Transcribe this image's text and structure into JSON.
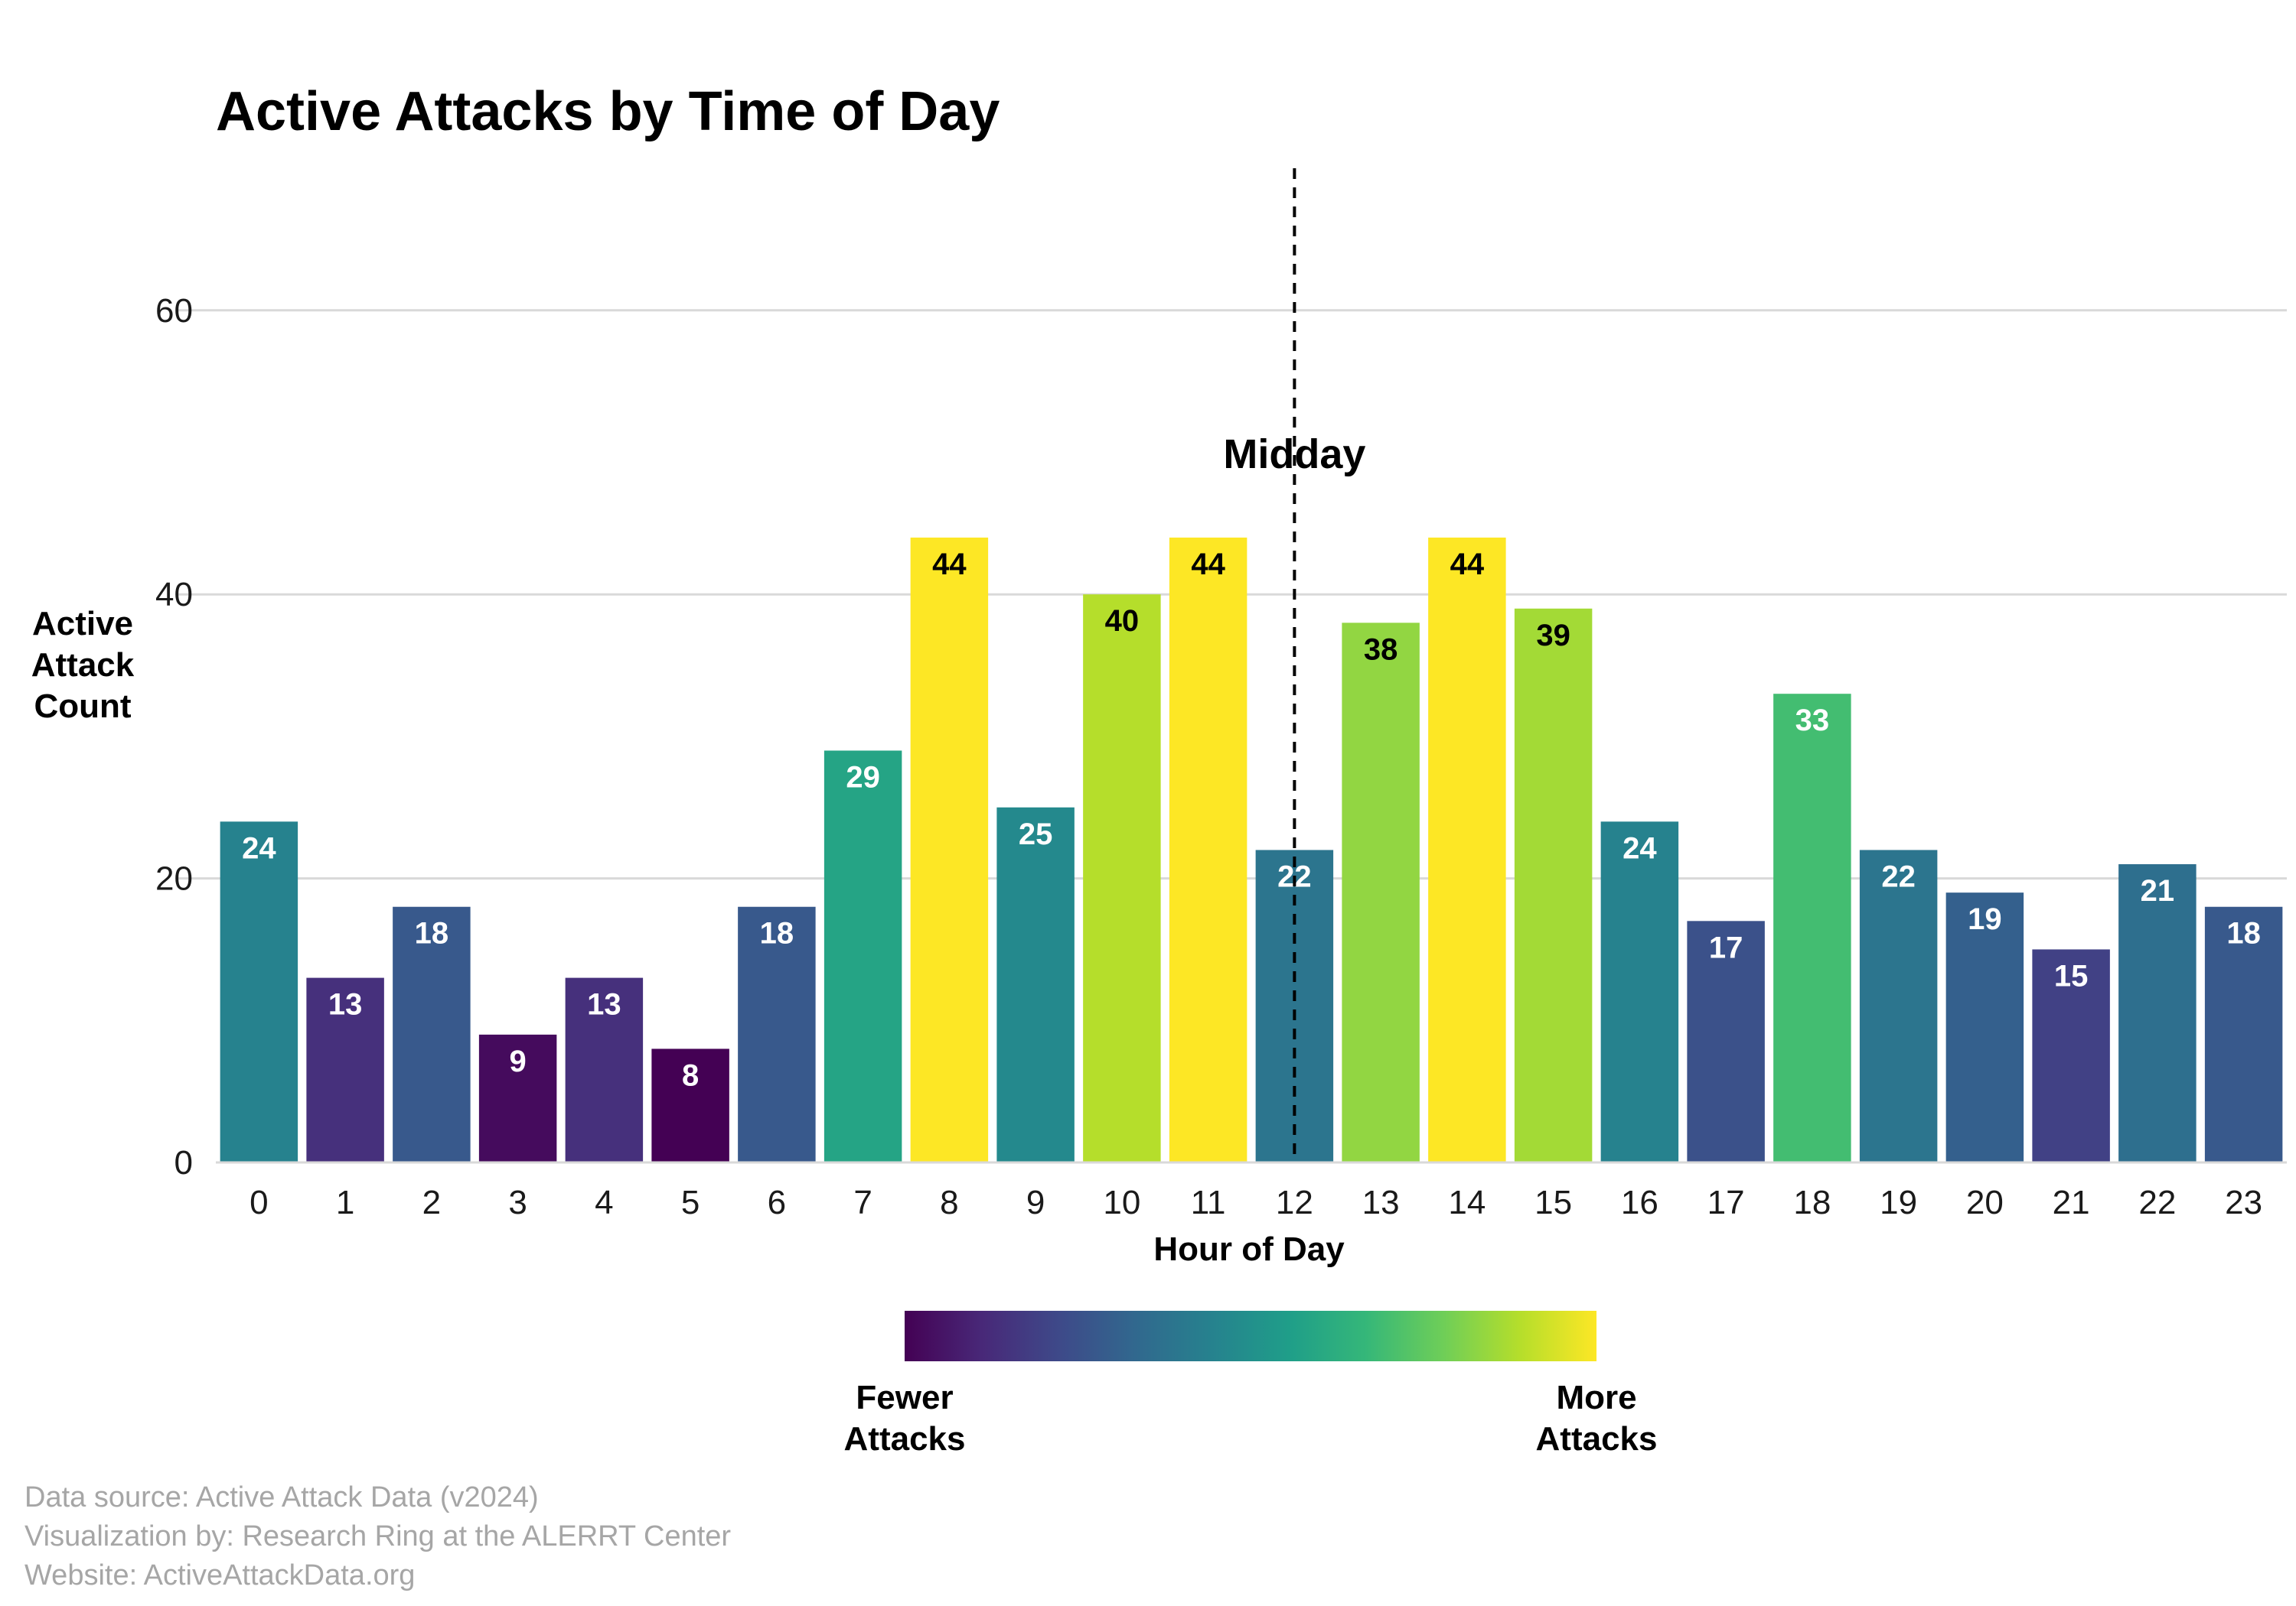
{
  "chart_data": {
    "type": "bar",
    "title": "Active Attacks by Time of Day",
    "xlabel": "Hour of Day",
    "ylabel_lines": [
      "Active",
      "Attack",
      "Count"
    ],
    "categories": [
      "0",
      "1",
      "2",
      "3",
      "4",
      "5",
      "6",
      "7",
      "8",
      "9",
      "10",
      "11",
      "12",
      "13",
      "14",
      "15",
      "16",
      "17",
      "18",
      "19",
      "20",
      "21",
      "22",
      "23"
    ],
    "values": [
      24,
      13,
      18,
      9,
      13,
      8,
      18,
      29,
      44,
      25,
      40,
      44,
      22,
      38,
      44,
      39,
      24,
      17,
      33,
      22,
      19,
      15,
      21,
      18
    ],
    "ylim": [
      0,
      70
    ],
    "yticks": [
      0,
      20,
      40,
      60
    ],
    "grid": "horizontal",
    "colorscale": "viridis",
    "colorscale_stops": [
      "#440154",
      "#482878",
      "#3e4989",
      "#31688e",
      "#26828e",
      "#1f9e89",
      "#35b779",
      "#6ece58",
      "#b5de2b",
      "#fde725"
    ],
    "annotation": {
      "label": "Midday",
      "x": "12",
      "style": "dashed vertical line"
    },
    "legend": {
      "type": "colorbar",
      "placement": "bottom-center",
      "low_label_lines": [
        "Fewer",
        "Attacks"
      ],
      "high_label_lines": [
        "More",
        "Attacks"
      ]
    }
  },
  "caption": [
    "Data source: Active Attack Data (v2024)",
    "Visualization by: Research Ring at the ALERRT Center",
    "Website: ActiveAttackData.org"
  ]
}
